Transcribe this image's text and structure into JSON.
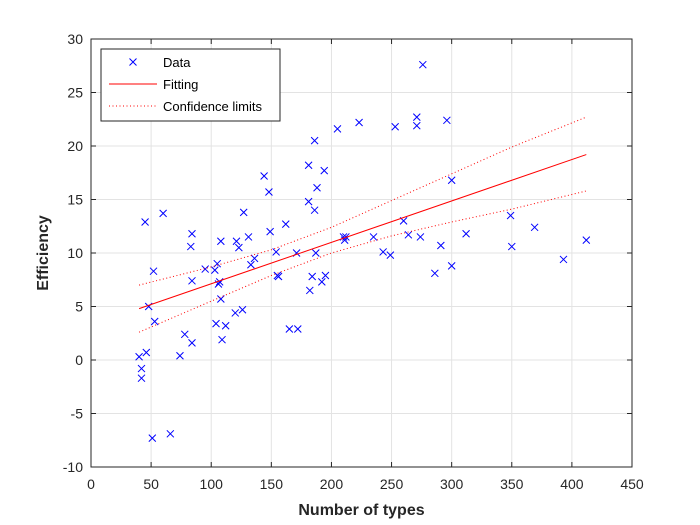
{
  "chart_data": {
    "type": "scatter",
    "xlabel": "Number of types",
    "ylabel": "Efficiency",
    "xlim": [
      0,
      450
    ],
    "ylim": [
      -10,
      30
    ],
    "x_ticks": [
      0,
      50,
      100,
      150,
      200,
      250,
      300,
      350,
      400,
      450
    ],
    "y_ticks": [
      -10,
      -5,
      0,
      5,
      10,
      15,
      20,
      25,
      30
    ],
    "grid": true,
    "legend_position": "top-left",
    "series": [
      {
        "name": "Data",
        "kind": "markers",
        "marker": "x",
        "color": "#0000ff",
        "points": [
          [
            40,
            0.3
          ],
          [
            42,
            -0.8
          ],
          [
            42,
            -1.7
          ],
          [
            45,
            12.9
          ],
          [
            46,
            0.7
          ],
          [
            48,
            5.0
          ],
          [
            51,
            -7.3
          ],
          [
            52,
            8.3
          ],
          [
            53,
            3.6
          ],
          [
            60,
            13.7
          ],
          [
            66,
            -6.9
          ],
          [
            74,
            0.4
          ],
          [
            78,
            2.4
          ],
          [
            83,
            10.6
          ],
          [
            84,
            11.8
          ],
          [
            84,
            7.4
          ],
          [
            84,
            1.6
          ],
          [
            95,
            8.5
          ],
          [
            103,
            8.4
          ],
          [
            104,
            3.4
          ],
          [
            105,
            9.0
          ],
          [
            106,
            7.1
          ],
          [
            107,
            7.3
          ],
          [
            108,
            5.7
          ],
          [
            108,
            11.1
          ],
          [
            109,
            1.9
          ],
          [
            112,
            3.2
          ],
          [
            120,
            4.4
          ],
          [
            121,
            11.1
          ],
          [
            123,
            10.5
          ],
          [
            126,
            4.7
          ],
          [
            127,
            13.8
          ],
          [
            131,
            11.5
          ],
          [
            133,
            8.9
          ],
          [
            136,
            9.5
          ],
          [
            144,
            17.2
          ],
          [
            148,
            15.7
          ],
          [
            149,
            12.0
          ],
          [
            154,
            10.1
          ],
          [
            155,
            7.9
          ],
          [
            156,
            7.8
          ],
          [
            162,
            12.7
          ],
          [
            165,
            2.9
          ],
          [
            171,
            10.0
          ],
          [
            172,
            2.9
          ],
          [
            181,
            18.2
          ],
          [
            181,
            14.8
          ],
          [
            182,
            6.5
          ],
          [
            184,
            7.8
          ],
          [
            186,
            14.0
          ],
          [
            186,
            20.5
          ],
          [
            187,
            10.0
          ],
          [
            188,
            16.1
          ],
          [
            192,
            7.3
          ],
          [
            194,
            17.7
          ],
          [
            195,
            7.9
          ],
          [
            205,
            21.6
          ],
          [
            210,
            11.5
          ],
          [
            211,
            11.2
          ],
          [
            212,
            11.5
          ],
          [
            223,
            22.2
          ],
          [
            235,
            11.5
          ],
          [
            243,
            10.1
          ],
          [
            249,
            9.8
          ],
          [
            253,
            21.8
          ],
          [
            260,
            13.0
          ],
          [
            264,
            11.7
          ],
          [
            271,
            22.7
          ],
          [
            271,
            21.9
          ],
          [
            274,
            11.5
          ],
          [
            276,
            27.6
          ],
          [
            286,
            8.1
          ],
          [
            291,
            10.7
          ],
          [
            296,
            22.4
          ],
          [
            300,
            16.8
          ],
          [
            300,
            8.8
          ],
          [
            312,
            11.8
          ],
          [
            349,
            13.5
          ],
          [
            350,
            10.6
          ],
          [
            369,
            12.4
          ],
          [
            393,
            9.4
          ],
          [
            412,
            11.2
          ]
        ]
      },
      {
        "name": "Fitting",
        "kind": "line",
        "style": "solid",
        "color": "#ff0000",
        "points": [
          [
            40,
            4.8
          ],
          [
            412,
            19.2
          ]
        ]
      },
      {
        "name": "Confidence limits",
        "kind": "line",
        "style": "dotted",
        "color": "#ff0000",
        "points": [
          [
            40,
            7.0
          ],
          [
            100,
            8.7
          ],
          [
            150,
            10.3
          ],
          [
            200,
            12.4
          ],
          [
            250,
            14.9
          ],
          [
            300,
            17.4
          ],
          [
            350,
            19.9
          ],
          [
            412,
            22.7
          ]
        ]
      },
      {
        "name": "",
        "kind": "line",
        "style": "dotted",
        "color": "#ff0000",
        "in_legend": false,
        "points": [
          [
            40,
            2.6
          ],
          [
            100,
            5.5
          ],
          [
            150,
            7.9
          ],
          [
            200,
            10.0
          ],
          [
            250,
            11.6
          ],
          [
            300,
            12.9
          ],
          [
            350,
            14.1
          ],
          [
            412,
            15.8
          ]
        ]
      }
    ]
  }
}
